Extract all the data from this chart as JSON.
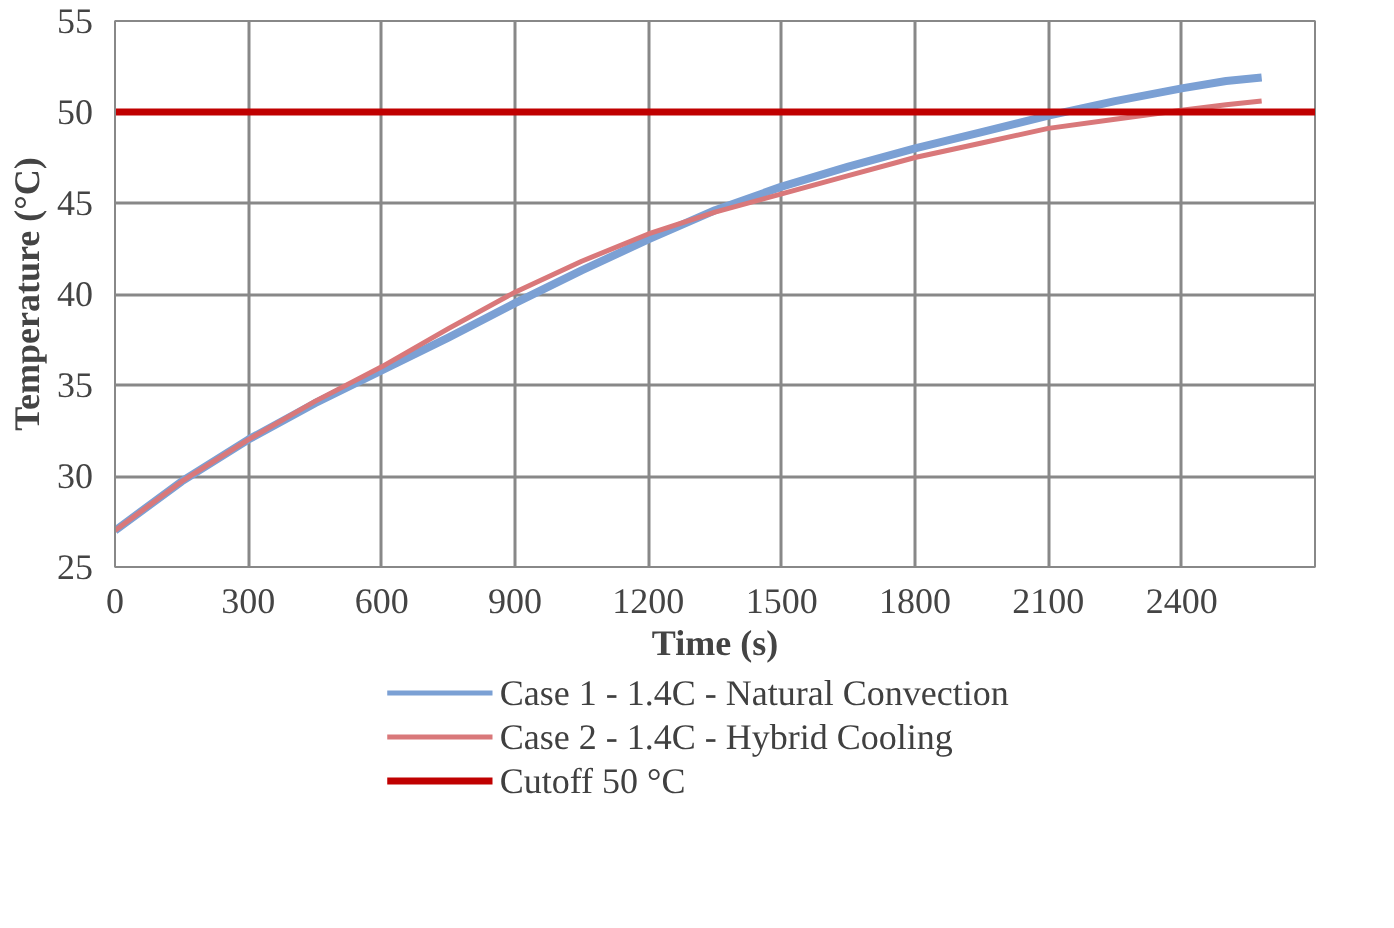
{
  "chart_data": {
    "type": "line",
    "xlabel": "Time (s)",
    "ylabel": "Temperature (°C)",
    "xlim": [
      0,
      2700
    ],
    "xticks": [
      0,
      300,
      600,
      900,
      1200,
      1500,
      1800,
      2100,
      2400
    ],
    "ylim": [
      25,
      55
    ],
    "yticks": [
      25,
      30,
      35,
      40,
      45,
      50,
      55
    ],
    "grid": true,
    "legend": "bottom",
    "series": [
      {
        "name": "Case 1 - 1.4C - Natural Convection",
        "color": "#7ba0d4",
        "x": [
          0,
          150,
          300,
          450,
          600,
          750,
          900,
          1050,
          1200,
          1350,
          1500,
          1650,
          1800,
          1950,
          2100,
          2250,
          2400,
          2500,
          2580
        ],
        "values": [
          27,
          29.7,
          32,
          34,
          35.8,
          37.6,
          39.5,
          41.3,
          43,
          44.6,
          45.9,
          47,
          48,
          48.9,
          49.8,
          50.6,
          51.3,
          51.7,
          51.9
        ]
      },
      {
        "name": "Case 2 - 1.4C - Hybrid Cooling",
        "color": "#d9787a",
        "x": [
          0,
          150,
          300,
          450,
          600,
          750,
          900,
          1050,
          1200,
          1350,
          1500,
          1650,
          1800,
          1950,
          2100,
          2250,
          2400,
          2500,
          2580
        ],
        "values": [
          27,
          29.7,
          32,
          34.1,
          36,
          38.1,
          40.1,
          41.8,
          43.3,
          44.5,
          45.5,
          46.5,
          47.5,
          48.3,
          49.1,
          49.6,
          50.1,
          50.4,
          50.6
        ]
      }
    ],
    "ref_lines": [
      {
        "axis": "y",
        "value": 50,
        "label": "Cutoff 50 °C",
        "color": "#c00000",
        "line_style": "solid"
      }
    ]
  }
}
